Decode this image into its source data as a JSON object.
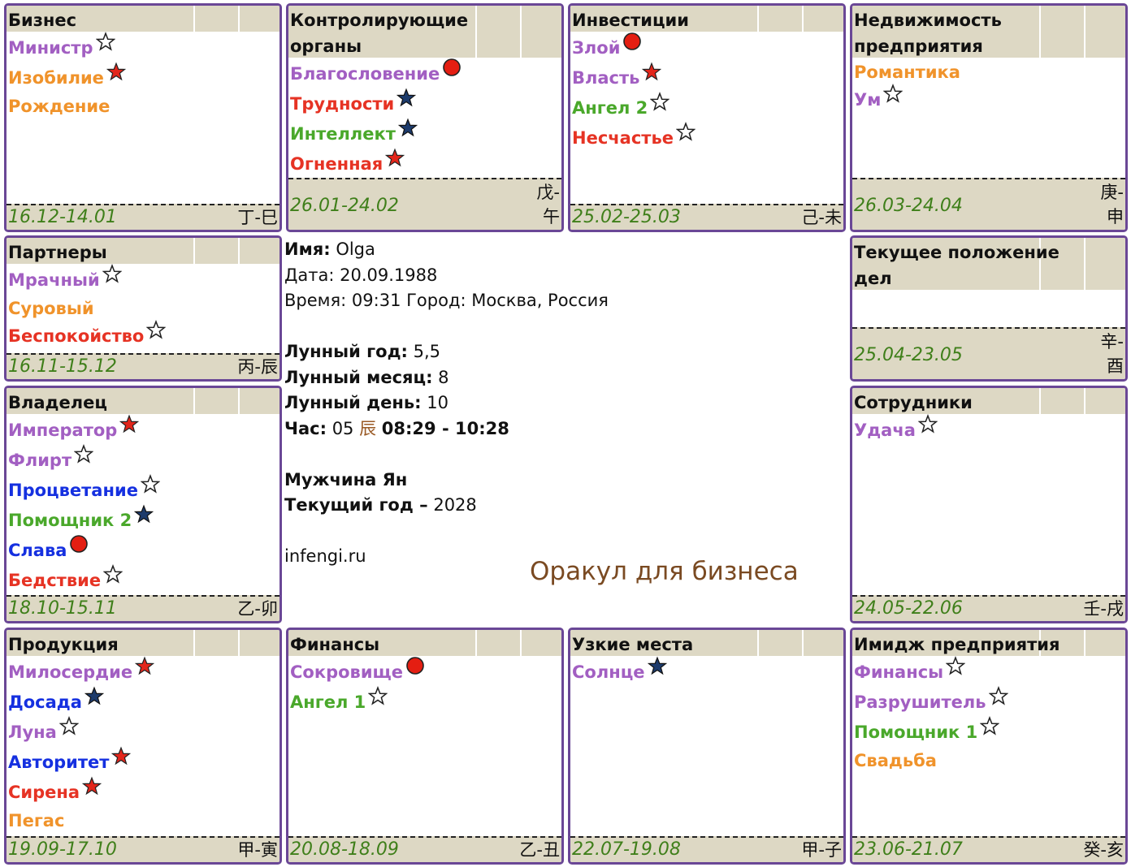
{
  "colors": {
    "purple": "#a25fc2",
    "orange": "#f0932b",
    "red": "#e63324",
    "green": "#4aa82b",
    "blue": "#1530e0",
    "border": "#6a4796",
    "header_bg": "#ddd8c4",
    "date_green": "#3f7f1a",
    "oracle_brown": "#7a4a22"
  },
  "palaces": [
    {
      "title": "Бизнес",
      "stars": [
        {
          "name": "Министр",
          "color": "purple",
          "sym": "outline-star-icon"
        },
        {
          "name": "Изобилие",
          "color": "orange",
          "sym": "red-star-icon"
        },
        {
          "name": "Рождение",
          "color": "orange",
          "sym": ""
        }
      ],
      "dates": "16.12-14.01",
      "gz": "丁-巳"
    },
    {
      "title": "Контролирующие органы",
      "stars": [
        {
          "name": "Благословение",
          "color": "purple",
          "sym": "red-circle-icon"
        },
        {
          "name": "Трудности",
          "color": "red",
          "sym": "navy-star-icon"
        },
        {
          "name": "Интеллект",
          "color": "green",
          "sym": "navy-star-icon"
        },
        {
          "name": "Огненная",
          "color": "red",
          "sym": "red-star-icon"
        }
      ],
      "dates": "26.01-24.02",
      "gz": "戊-午"
    },
    {
      "title": "Инвестиции",
      "stars": [
        {
          "name": "Злой",
          "color": "purple",
          "sym": "red-circle-icon"
        },
        {
          "name": "Власть",
          "color": "purple",
          "sym": "red-star-icon"
        },
        {
          "name": "Ангел 2",
          "color": "green",
          "sym": "outline-star-icon"
        },
        {
          "name": "Несчастье",
          "color": "red",
          "sym": "outline-star-icon"
        }
      ],
      "dates": "25.02-25.03",
      "gz": "己-未"
    },
    {
      "title": "Недвижимость предприятия",
      "stars": [
        {
          "name": "Романтика",
          "color": "orange",
          "sym": ""
        },
        {
          "name": "Ум",
          "color": "purple",
          "sym": "outline-star-icon"
        }
      ],
      "dates": "26.03-24.04",
      "gz": "庚-申"
    },
    {
      "title": "Партнеры",
      "stars": [
        {
          "name": "Мрачный",
          "color": "purple",
          "sym": "outline-star-icon"
        },
        {
          "name": "Суровый",
          "color": "orange",
          "sym": ""
        },
        {
          "name": "Беспокойство",
          "color": "red",
          "sym": "outline-star-icon"
        }
      ],
      "dates": "16.11-15.12",
      "gz": "丙-辰"
    },
    {
      "title": "Текущее положение дел",
      "stars": [],
      "dates": "25.04-23.05",
      "gz": "辛-酉"
    },
    {
      "title": "Владелец",
      "stars": [
        {
          "name": "Император",
          "color": "purple",
          "sym": "red-star-icon"
        },
        {
          "name": "Флирт",
          "color": "purple",
          "sym": "outline-star-icon"
        },
        {
          "name": "Процветание",
          "color": "blue",
          "sym": "outline-star-icon"
        },
        {
          "name": "Помощник 2",
          "color": "green",
          "sym": "navy-star-icon"
        },
        {
          "name": "Слава",
          "color": "blue",
          "sym": "red-circle-icon"
        },
        {
          "name": "Бедствие",
          "color": "red",
          "sym": "outline-star-icon"
        }
      ],
      "dates": "18.10-15.11",
      "gz": "乙-卯"
    },
    {
      "title": "Сотрудники",
      "stars": [
        {
          "name": "Удача",
          "color": "purple",
          "sym": "outline-star-icon"
        }
      ],
      "dates": "24.05-22.06",
      "gz": "壬-戌"
    },
    {
      "title": "Продукция",
      "stars": [
        {
          "name": "Милосердие",
          "color": "purple",
          "sym": "red-star-icon"
        },
        {
          "name": "Досада",
          "color": "blue",
          "sym": "navy-star-icon"
        },
        {
          "name": "Луна",
          "color": "purple",
          "sym": "outline-star-icon"
        },
        {
          "name": "Авторитет",
          "color": "blue",
          "sym": "red-star-icon"
        },
        {
          "name": "Сирена",
          "color": "red",
          "sym": "red-star-icon"
        },
        {
          "name": "Пегас",
          "color": "orange",
          "sym": ""
        }
      ],
      "dates": "19.09-17.10",
      "gz": "甲-寅"
    },
    {
      "title": "Финансы",
      "stars": [
        {
          "name": "Сокровище",
          "color": "purple",
          "sym": "red-circle-icon"
        },
        {
          "name": "Ангел 1",
          "color": "green",
          "sym": "outline-star-icon"
        }
      ],
      "dates": "20.08-18.09",
      "gz": "乙-丑"
    },
    {
      "title": "Узкие места",
      "stars": [
        {
          "name": "Солнце",
          "color": "purple",
          "sym": "navy-star-icon"
        }
      ],
      "dates": "22.07-19.08",
      "gz": "甲-子"
    },
    {
      "title": "Имидж предприятия",
      "stars": [
        {
          "name": "Финансы",
          "color": "purple",
          "sym": "outline-star-icon"
        },
        {
          "name": "Разрушитель",
          "color": "purple",
          "sym": "outline-star-icon"
        },
        {
          "name": "Помощник 1",
          "color": "green",
          "sym": "outline-star-icon"
        },
        {
          "name": "Свадьба",
          "color": "orange",
          "sym": ""
        }
      ],
      "dates": "23.06-21.07",
      "gz": "癸-亥"
    }
  ],
  "info": {
    "name_label": "Имя:",
    "name": "Olga",
    "date_label": "Дата:",
    "date": "20.09.1988",
    "time_label": "Время:",
    "time": "09:31",
    "city_label": "Город:",
    "city": "Москва, Россия",
    "lunar_year_label": "Лунный год:",
    "lunar_year": "5,5",
    "lunar_month_label": "Лунный месяц:",
    "lunar_month": "8",
    "lunar_day_label": "Лунный день:",
    "lunar_day": "10",
    "hour_label": "Час:",
    "hour": "05",
    "hour_char": "辰",
    "hour_range": "08:29 - 10:28",
    "gender": "Мужчина Ян",
    "current_year_label": "Текущий год –",
    "current_year": "2028",
    "site": "infengi.ru",
    "oracle": "Оракул для бизнеса"
  }
}
